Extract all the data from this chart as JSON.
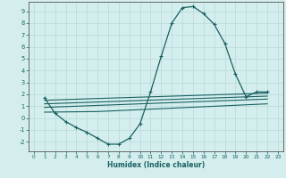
{
  "xlabel": "Humidex (Indice chaleur)",
  "bg_color": "#d4eeee",
  "grid_color": "#b8d8d8",
  "line_color": "#1a6060",
  "spine_color": "#555555",
  "xlim": [
    -0.5,
    23.5
  ],
  "ylim": [
    -2.8,
    9.8
  ],
  "xticks": [
    0,
    1,
    2,
    3,
    4,
    5,
    6,
    7,
    8,
    9,
    10,
    11,
    12,
    13,
    14,
    15,
    16,
    17,
    18,
    19,
    20,
    21,
    22,
    23
  ],
  "yticks": [
    -2,
    -1,
    0,
    1,
    2,
    3,
    4,
    5,
    6,
    7,
    8,
    9
  ],
  "curve1_x": [
    1,
    2,
    3,
    4,
    5,
    6,
    7,
    8,
    9,
    10,
    11,
    12,
    13,
    14,
    15,
    16,
    17,
    18,
    19,
    20,
    21,
    22
  ],
  "curve1_y": [
    1.7,
    0.4,
    -0.3,
    -0.8,
    -1.2,
    -1.7,
    -2.2,
    -2.2,
    -1.7,
    -0.5,
    2.2,
    5.2,
    8.0,
    9.3,
    9.4,
    8.8,
    7.9,
    6.3,
    3.7,
    1.8,
    2.2,
    2.2
  ],
  "line2_x": [
    1,
    6,
    22
  ],
  "line2_y": [
    1.5,
    1.65,
    2.1
  ],
  "line3_x": [
    1,
    22
  ],
  "line3_y": [
    1.2,
    1.85
  ],
  "line4_x": [
    1,
    22
  ],
  "line4_y": [
    0.9,
    1.6
  ],
  "line5_x": [
    1,
    6,
    22
  ],
  "line5_y": [
    0.5,
    0.55,
    1.2
  ]
}
